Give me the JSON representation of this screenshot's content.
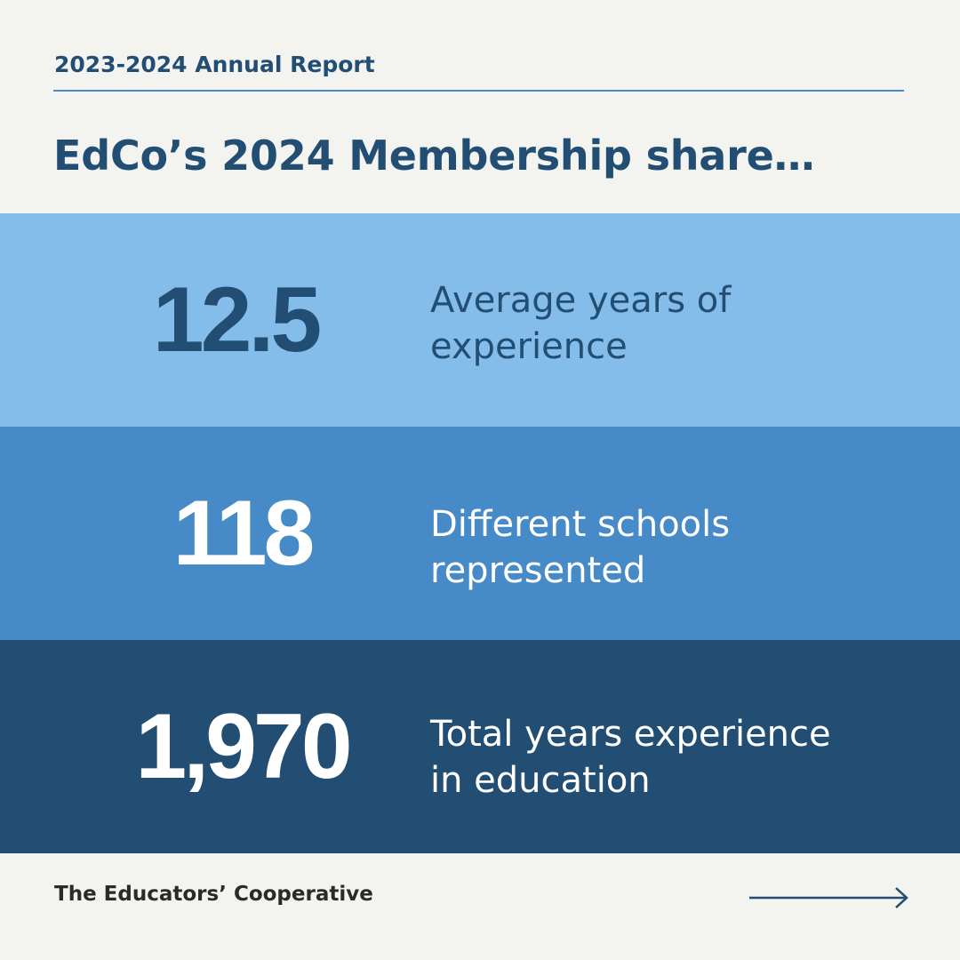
{
  "header": {
    "report_label": "2023-2024 Annual Report",
    "headline": "EdCo’s 2024 Membership share…"
  },
  "stats": [
    {
      "value": "12.5",
      "line1": "Average years of",
      "line2": "experience"
    },
    {
      "value": "118",
      "line1": "Different schools",
      "line2": "represented"
    },
    {
      "value": "1,970",
      "line1": "Total years experience",
      "line2": "in education"
    }
  ],
  "footer": {
    "organization": "The Educators’ Cooperative",
    "arrow_icon": "arrow-right-icon"
  },
  "colors": {
    "background": "#f3f3ef",
    "navy": "#234e74",
    "light_blue": "#84bdea",
    "mid_blue": "#468ac7"
  }
}
